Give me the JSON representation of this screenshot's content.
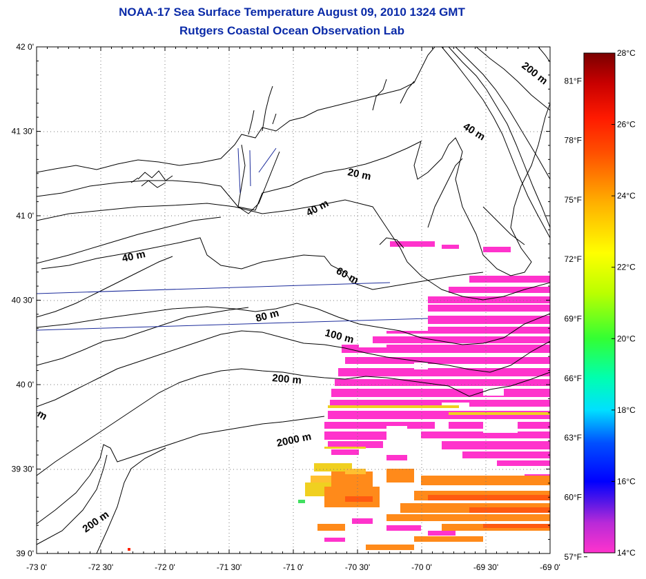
{
  "title": "NOAA-17 Sea Surface Temperature August 09, 2010 1324 GMT",
  "subtitle": "Rutgers Coastal Ocean Observation Lab",
  "map": {
    "lon_range": [
      -73.0,
      -69.0
    ],
    "lat_range": [
      39.0,
      42.0
    ],
    "grid": true,
    "lon_ticks": [
      "-73 0'",
      "-72 30'",
      "-72 0'",
      "-71 30'",
      "-71 0'",
      "-70 30'",
      "-70 0'",
      "-69 30'",
      "-69 0'"
    ],
    "lat_ticks": [
      "39 0'",
      "39 30'",
      "40 0'",
      "40 30'",
      "41 0'",
      "41 30'",
      "42 0'"
    ],
    "fahrenheit_ticks": [
      "57°F",
      "60°F",
      "63°F",
      "66°F",
      "69°F",
      "72°F",
      "75°F",
      "78°F",
      "81°F"
    ],
    "contour_labels": [
      "20 m",
      "40 m",
      "40 m",
      "40 m",
      "60 m",
      "80 m",
      "100 m",
      "200 m",
      "200 m",
      "200 m",
      "2000 m",
      "m"
    ]
  },
  "colorbar": {
    "range_c": [
      14,
      28
    ],
    "labels": [
      "14°C",
      "16°C",
      "18°C",
      "20°C",
      "22°C",
      "24°C",
      "26°C",
      "28°C"
    ],
    "colors": {
      "14": "#ff33cc",
      "15": "#8a1fd6",
      "16": "#0000ff",
      "18": "#00ffff",
      "20": "#00ff66",
      "22": "#ccff00",
      "23": "#ffff00",
      "24": "#ffaa00",
      "26": "#ff2200",
      "28": "#880000"
    }
  },
  "colors": {
    "title": "#0a2aa8",
    "land_line": "#000000",
    "transect": "#1a2a9a",
    "sst_cool": "#ff33cc",
    "sst_warm": "#ff7a10",
    "sst_yellow": "#f0e020"
  }
}
